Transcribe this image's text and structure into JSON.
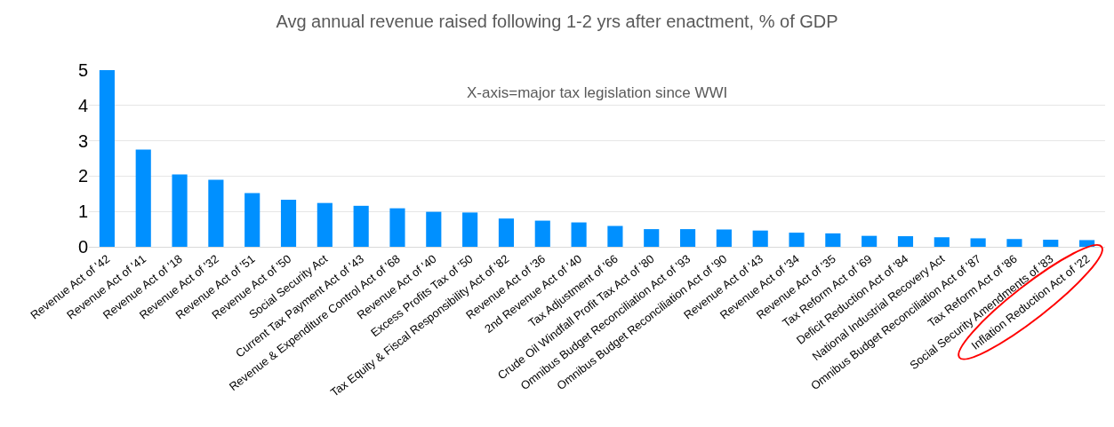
{
  "chart_data": {
    "type": "bar",
    "title": "Avg annual revenue raised following 1-2 yrs after enactment, % of GDP",
    "annotations": [
      "X-axis=major tax legislation since WWI"
    ],
    "categories": [
      "Revenue Act of '42",
      "Revenue Act of '41",
      "Revenue Act of '18",
      "Revenue Act of '32",
      "Revenue Act of '51",
      "Revenue Act of '50",
      "Social Security Act",
      "Current Tax Payment Act of '43",
      "Revenue & Expenditure Control Act of '68",
      "Revenue Act of '40",
      "Excess Profits Tax of '50",
      "Tax Equity & Fiscal Responsibility Act of '82",
      "Revenue Act of '36",
      "2nd Revenue Act of '40",
      "Tax Adjustment of '66",
      "Crude Oil Windfall Profit Tax Act of '80",
      "Omnibus Budget Reconciliation Act of '93",
      "Omnibus Budget Reconciliation Act of '90",
      "Revenue Act of '43",
      "Revenue Act of '34",
      "Revenue Act of '35",
      "Tax Reform Act of '69",
      "Deficit Reduction Act of '84",
      "National Industrial Recovery Act",
      "Omnibus Budget Reconciliation Act of '87",
      "Tax Reform Act of '86",
      "Social Security Amendments of '83",
      "Inflation Reduction Act of '22"
    ],
    "values": [
      5,
      2.75,
      2.05,
      1.9,
      1.52,
      1.33,
      1.24,
      1.16,
      1.09,
      0.99,
      0.97,
      0.8,
      0.74,
      0.69,
      0.59,
      0.5,
      0.5,
      0.49,
      0.46,
      0.4,
      0.38,
      0.31,
      0.3,
      0.27,
      0.24,
      0.22,
      0.2,
      0.19
    ],
    "color": "#0090ff",
    "ylim": [
      0,
      5
    ],
    "yticks": [
      0,
      1,
      2,
      3,
      4,
      5
    ],
    "grid": "y"
  }
}
